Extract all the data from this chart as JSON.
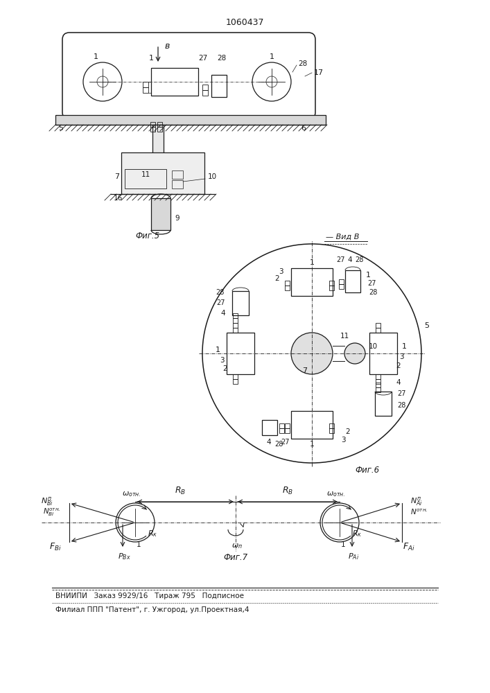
{
  "patent_number": "1060437",
  "bg_color": "#ffffff",
  "line_color": "#1a1a1a",
  "fig5_label": "Фиг.5",
  "fig6_label": "Фиг.6",
  "fig7_label": "Фиг.7",
  "view_label": "Вид В",
  "bottom_text1": "ВНИИПИ   Заказ 9929/16   Тираж 795   Подписное",
  "bottom_text2": "Филиал ППП \"Патент\", г. Ужгород, ул.Проектная,4"
}
